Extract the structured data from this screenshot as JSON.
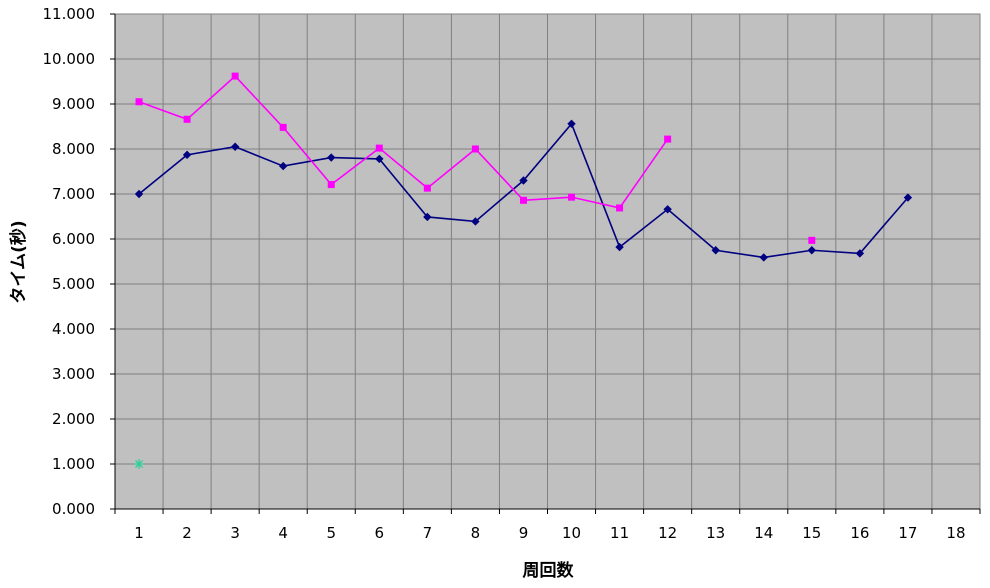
{
  "chart_data": {
    "type": "line",
    "xlabel": "周回数",
    "ylabel": "タイム(秒)",
    "x": [
      1,
      2,
      3,
      4,
      5,
      6,
      7,
      8,
      9,
      10,
      11,
      12,
      13,
      14,
      15,
      16,
      17,
      18
    ],
    "x_tick_labels": [
      "1",
      "2",
      "3",
      "4",
      "5",
      "6",
      "7",
      "8",
      "9",
      "10",
      "11",
      "12",
      "13",
      "14",
      "15",
      "16",
      "17",
      "18"
    ],
    "ylim": [
      0,
      11
    ],
    "y_ticks": [
      0,
      1,
      2,
      3,
      4,
      5,
      6,
      7,
      8,
      9,
      10,
      11
    ],
    "y_tick_labels": [
      "0.000",
      "1.000",
      "2.000",
      "3.000",
      "4.000",
      "5.000",
      "6.000",
      "7.000",
      "8.000",
      "9.000",
      "10.000",
      "11.000"
    ],
    "grid": true,
    "legend": "none",
    "plot_background": "#c0c0c0",
    "series": [
      {
        "color": "#000080",
        "marker": "diamond",
        "values": [
          7.0,
          7.87,
          8.05,
          7.62,
          7.81,
          7.78,
          6.49,
          6.39,
          7.3,
          8.56,
          5.82,
          6.66,
          5.75,
          5.59,
          5.75,
          5.68,
          6.92,
          null
        ]
      },
      {
        "color": "#ff00ff",
        "marker": "square",
        "values": [
          9.05,
          8.66,
          9.62,
          8.48,
          7.21,
          8.02,
          7.13,
          8.0,
          6.86,
          6.93,
          6.69,
          8.22,
          null,
          null,
          5.97,
          null,
          null,
          null
        ]
      },
      {
        "color": "#33cc99",
        "marker": "asterisk",
        "values": [
          1.0,
          null,
          null,
          null,
          null,
          null,
          null,
          null,
          null,
          null,
          null,
          null,
          null,
          null,
          null,
          null,
          null,
          null
        ]
      }
    ]
  }
}
